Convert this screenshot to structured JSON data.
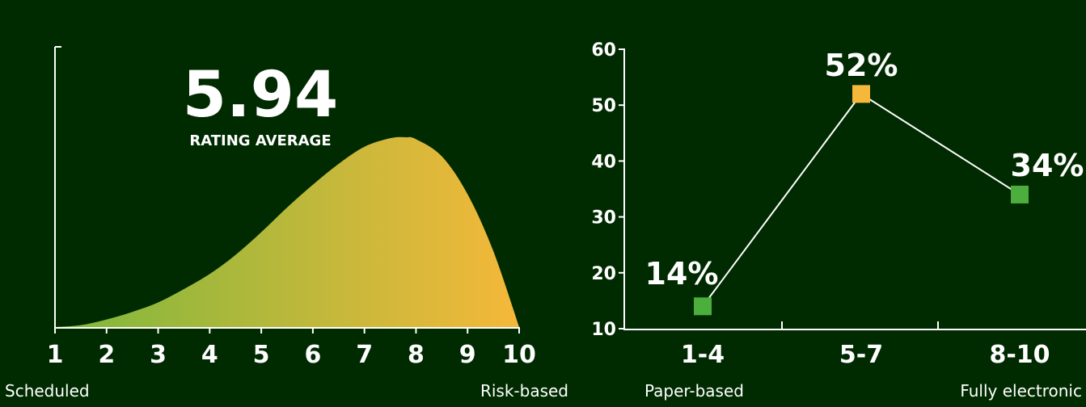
{
  "colors": {
    "background": "#002a00",
    "green": "#4caf3d",
    "orange": "#f5b83a",
    "line": "#ffffff",
    "gradient_start": "#7cb83c",
    "gradient_end": "#f5b83a"
  },
  "chart_data": [
    {
      "type": "area",
      "title": "",
      "big_value": "5.94",
      "big_caption": "RATING AVERAGE",
      "x_ticks": [
        "1",
        "2",
        "3",
        "4",
        "5",
        "6",
        "7",
        "8",
        "9",
        "10"
      ],
      "xlim": [
        1,
        10
      ],
      "ylim": [
        0,
        1
      ],
      "x": [
        1,
        1.5,
        2,
        2.5,
        3,
        3.5,
        4,
        4.5,
        5,
        5.5,
        6,
        6.5,
        7,
        7.5,
        7.8,
        8,
        8.5,
        9,
        9.5,
        10
      ],
      "y": [
        0.0,
        0.01,
        0.04,
        0.08,
        0.13,
        0.2,
        0.28,
        0.38,
        0.5,
        0.63,
        0.75,
        0.86,
        0.95,
        0.995,
        1.0,
        0.99,
        0.9,
        0.7,
        0.4,
        0.0
      ],
      "left_caption": "Scheduled",
      "right_caption": "Risk-based",
      "grid": false
    },
    {
      "type": "line",
      "title": "",
      "categories": [
        "1-4",
        "5-7",
        "8-10"
      ],
      "values": [
        14,
        52,
        34
      ],
      "value_labels": [
        "14%",
        "52%",
        "34%"
      ],
      "point_colors": [
        "#4caf3d",
        "#f5b83a",
        "#4caf3d"
      ],
      "y_ticks": [
        "10",
        "20",
        "30",
        "40",
        "50",
        "60"
      ],
      "ylim": [
        10,
        60
      ],
      "left_caption": "Paper-based",
      "right_caption": "Fully electronic",
      "grid": false
    }
  ]
}
